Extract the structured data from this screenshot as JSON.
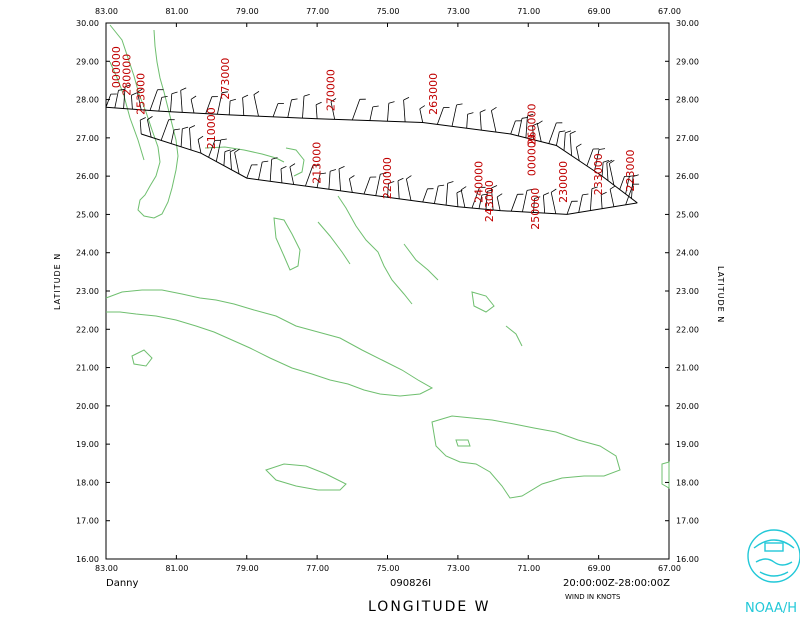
{
  "plot": {
    "storm_name": "Danny",
    "date_code": "090826I",
    "time_range": "20:00:00Z-28:00:00Z",
    "wind_units": "WIND IN KNOTS",
    "x_axis_title": "LONGITUDE   W",
    "y_axis_title_left": "LATITUDE   N",
    "y_axis_title_right": "LATITUDE   N",
    "logo_text": "NOAA/H",
    "colors": {
      "coast": "#6fbf6f",
      "track": "#000000",
      "time_labels": "#c00000",
      "logo": "#22c8d8"
    }
  },
  "chart_data": {
    "type": "scatter",
    "lon_range_deg_w": [
      83,
      67
    ],
    "lat_range_deg_n": [
      16,
      30
    ],
    "x_ticks": [
      "83.00",
      "81.00",
      "79.00",
      "77.00",
      "75.00",
      "73.00",
      "71.00",
      "69.00",
      "67.00"
    ],
    "y_ticks": [
      "30.00",
      "29.00",
      "28.00",
      "27.00",
      "26.00",
      "25.00",
      "24.00",
      "23.00",
      "22.00",
      "21.00",
      "20.00",
      "19.00",
      "18.00",
      "17.00",
      "16.00"
    ],
    "grid": false,
    "track_upper": [
      {
        "lon": 83.0,
        "lat": 27.8
      },
      {
        "lon": 81.5,
        "lat": 27.7
      },
      {
        "lon": 79.5,
        "lat": 27.6
      },
      {
        "lon": 77.0,
        "lat": 27.5
      },
      {
        "lon": 74.0,
        "lat": 27.4
      },
      {
        "lon": 71.5,
        "lat": 27.1
      },
      {
        "lon": 70.2,
        "lat": 26.8
      },
      {
        "lon": 68.9,
        "lat": 26.0
      },
      {
        "lon": 67.9,
        "lat": 25.3
      }
    ],
    "track_lower": [
      {
        "lon": 82.0,
        "lat": 27.1
      },
      {
        "lon": 80.3,
        "lat": 26.6
      },
      {
        "lon": 79.0,
        "lat": 25.95
      },
      {
        "lon": 77.0,
        "lat": 25.7
      },
      {
        "lon": 75.0,
        "lat": 25.45
      },
      {
        "lon": 73.0,
        "lat": 25.2
      },
      {
        "lon": 71.8,
        "lat": 25.1
      },
      {
        "lon": 69.9,
        "lat": 25.0
      },
      {
        "lon": 67.9,
        "lat": 25.3
      }
    ],
    "time_labels": [
      {
        "text": "000000",
        "lon": 82.6,
        "lat": 28.3
      },
      {
        "text": "280000",
        "lon": 82.3,
        "lat": 28.1
      },
      {
        "text": "253000",
        "lon": 81.9,
        "lat": 27.6
      },
      {
        "text": "273000",
        "lon": 79.5,
        "lat": 28.0
      },
      {
        "text": "210000",
        "lon": 79.9,
        "lat": 26.7
      },
      {
        "text": "270000",
        "lon": 76.5,
        "lat": 27.7
      },
      {
        "text": "213000",
        "lon": 76.9,
        "lat": 25.8
      },
      {
        "text": "263000",
        "lon": 73.6,
        "lat": 27.6
      },
      {
        "text": "220000",
        "lon": 74.9,
        "lat": 25.4
      },
      {
        "text": "260000",
        "lon": 70.8,
        "lat": 26.8
      },
      {
        "text": "000000",
        "lon": 70.8,
        "lat": 26.0
      },
      {
        "text": "240000",
        "lon": 72.3,
        "lat": 25.3
      },
      {
        "text": "243000",
        "lon": 72.0,
        "lat": 24.8
      },
      {
        "text": "250000",
        "lon": 70.7,
        "lat": 24.6
      },
      {
        "text": "230000",
        "lon": 69.9,
        "lat": 25.3
      },
      {
        "text": "233000",
        "lon": 68.9,
        "lat": 25.5
      },
      {
        "text": "223000",
        "lon": 68.0,
        "lat": 25.6
      }
    ]
  }
}
